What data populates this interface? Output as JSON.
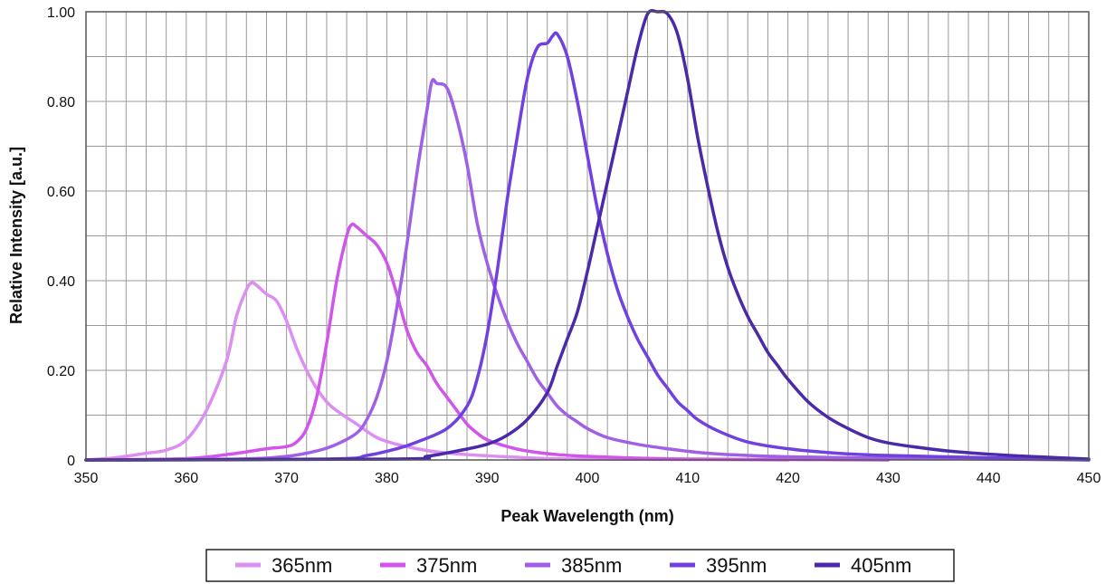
{
  "chart_data": {
    "type": "line",
    "title": "",
    "xlabel": "Peak Wavelength (nm)",
    "ylabel": "Relative Intensity [a.u.]",
    "xlim": [
      350,
      450
    ],
    "ylim": [
      0,
      1.0
    ],
    "grid": true,
    "x_ticks": [
      350,
      360,
      370,
      380,
      390,
      400,
      410,
      420,
      430,
      440,
      450
    ],
    "x_tick_labels": [
      "350",
      "360",
      "370",
      "380",
      "390",
      "400",
      "410",
      "420",
      "430",
      "440",
      "450"
    ],
    "y_ticks": [
      0,
      0.2,
      0.4,
      0.6,
      0.8,
      1.0
    ],
    "y_tick_labels": [
      "0",
      "0.20",
      "0.40",
      "0.60",
      "0.80",
      "1.00"
    ],
    "legend_position": "bottom-center",
    "series": [
      {
        "name": "365nm",
        "color": "#dc8ef2",
        "points": [
          [
            350,
            0
          ],
          [
            353,
            0.005
          ],
          [
            356,
            0.015
          ],
          [
            358,
            0.022
          ],
          [
            360,
            0.045
          ],
          [
            362,
            0.11
          ],
          [
            364,
            0.22
          ],
          [
            365,
            0.32
          ],
          [
            366,
            0.38
          ],
          [
            366.5,
            0.395
          ],
          [
            367,
            0.39
          ],
          [
            368,
            0.37
          ],
          [
            369,
            0.355
          ],
          [
            370,
            0.31
          ],
          [
            371,
            0.25
          ],
          [
            372,
            0.2
          ],
          [
            373,
            0.16
          ],
          [
            374,
            0.13
          ],
          [
            375,
            0.11
          ],
          [
            377,
            0.08
          ],
          [
            379,
            0.05
          ],
          [
            381,
            0.035
          ],
          [
            383,
            0.025
          ],
          [
            385,
            0.018
          ],
          [
            388,
            0.012
          ],
          [
            392,
            0.007
          ],
          [
            396,
            0.003
          ],
          [
            400,
            0.002
          ],
          [
            410,
            0.001
          ],
          [
            420,
            0
          ]
        ]
      },
      {
        "name": "375nm",
        "color": "#d155ea",
        "points": [
          [
            350,
            0
          ],
          [
            360,
            0.003
          ],
          [
            364,
            0.012
          ],
          [
            366,
            0.018
          ],
          [
            368,
            0.025
          ],
          [
            370,
            0.03
          ],
          [
            371,
            0.04
          ],
          [
            372,
            0.07
          ],
          [
            373,
            0.14
          ],
          [
            374,
            0.26
          ],
          [
            375,
            0.4
          ],
          [
            376,
            0.5
          ],
          [
            376.5,
            0.525
          ],
          [
            377,
            0.52
          ],
          [
            378,
            0.5
          ],
          [
            379,
            0.48
          ],
          [
            380,
            0.44
          ],
          [
            381,
            0.37
          ],
          [
            382,
            0.29
          ],
          [
            383,
            0.24
          ],
          [
            384,
            0.21
          ],
          [
            385,
            0.17
          ],
          [
            386,
            0.14
          ],
          [
            387,
            0.11
          ],
          [
            388,
            0.08
          ],
          [
            389,
            0.06
          ],
          [
            390,
            0.045
          ],
          [
            392,
            0.03
          ],
          [
            394,
            0.02
          ],
          [
            397,
            0.012
          ],
          [
            400,
            0.008
          ],
          [
            405,
            0.004
          ],
          [
            410,
            0.002
          ],
          [
            420,
            0.001
          ],
          [
            430,
            0
          ]
        ]
      },
      {
        "name": "385nm",
        "color": "#a060e6",
        "points": [
          [
            350,
            0
          ],
          [
            365,
            0.002
          ],
          [
            370,
            0.008
          ],
          [
            373,
            0.02
          ],
          [
            375,
            0.035
          ],
          [
            377,
            0.06
          ],
          [
            378,
            0.09
          ],
          [
            379,
            0.14
          ],
          [
            380,
            0.22
          ],
          [
            381,
            0.34
          ],
          [
            382,
            0.48
          ],
          [
            383,
            0.64
          ],
          [
            384,
            0.78
          ],
          [
            384.5,
            0.845
          ],
          [
            385,
            0.84
          ],
          [
            386,
            0.83
          ],
          [
            387,
            0.76
          ],
          [
            388,
            0.66
          ],
          [
            389,
            0.53
          ],
          [
            390,
            0.44
          ],
          [
            391,
            0.37
          ],
          [
            392,
            0.31
          ],
          [
            393,
            0.26
          ],
          [
            394,
            0.22
          ],
          [
            395,
            0.18
          ],
          [
            396,
            0.15
          ],
          [
            397,
            0.12
          ],
          [
            398,
            0.1
          ],
          [
            399,
            0.085
          ],
          [
            400,
            0.07
          ],
          [
            402,
            0.05
          ],
          [
            405,
            0.035
          ],
          [
            408,
            0.025
          ],
          [
            411,
            0.017
          ],
          [
            415,
            0.011
          ],
          [
            420,
            0.007
          ],
          [
            430,
            0.004
          ],
          [
            440,
            0.002
          ],
          [
            450,
            0
          ]
        ]
      },
      {
        "name": "395nm",
        "color": "#7040e0",
        "points": [
          [
            350,
            0
          ],
          [
            374,
            0.002
          ],
          [
            378,
            0.01
          ],
          [
            381,
            0.025
          ],
          [
            383,
            0.04
          ],
          [
            386,
            0.07
          ],
          [
            388,
            0.12
          ],
          [
            389,
            0.18
          ],
          [
            390,
            0.28
          ],
          [
            391,
            0.42
          ],
          [
            392,
            0.58
          ],
          [
            393,
            0.72
          ],
          [
            394,
            0.85
          ],
          [
            395,
            0.92
          ],
          [
            396,
            0.93
          ],
          [
            396.5,
            0.945
          ],
          [
            397,
            0.95
          ],
          [
            398,
            0.9
          ],
          [
            399,
            0.8
          ],
          [
            400,
            0.68
          ],
          [
            401,
            0.56
          ],
          [
            402,
            0.46
          ],
          [
            403,
            0.38
          ],
          [
            404,
            0.32
          ],
          [
            405,
            0.27
          ],
          [
            406,
            0.23
          ],
          [
            407,
            0.19
          ],
          [
            408,
            0.16
          ],
          [
            409,
            0.13
          ],
          [
            410,
            0.11
          ],
          [
            411,
            0.09
          ],
          [
            413,
            0.065
          ],
          [
            416,
            0.04
          ],
          [
            420,
            0.025
          ],
          [
            425,
            0.015
          ],
          [
            430,
            0.01
          ],
          [
            440,
            0.005
          ],
          [
            450,
            0
          ]
        ]
      },
      {
        "name": "405nm",
        "color": "#4a2aa8",
        "points": [
          [
            350,
            0
          ],
          [
            381,
            0.002
          ],
          [
            384,
            0.008
          ],
          [
            387,
            0.02
          ],
          [
            390,
            0.035
          ],
          [
            392,
            0.055
          ],
          [
            394,
            0.09
          ],
          [
            396,
            0.15
          ],
          [
            397,
            0.21
          ],
          [
            398,
            0.27
          ],
          [
            399,
            0.33
          ],
          [
            400,
            0.42
          ],
          [
            401,
            0.52
          ],
          [
            402,
            0.62
          ],
          [
            403,
            0.72
          ],
          [
            404,
            0.82
          ],
          [
            405,
            0.92
          ],
          [
            406,
            0.995
          ],
          [
            407,
            1.0
          ],
          [
            408,
            0.995
          ],
          [
            409,
            0.95
          ],
          [
            410,
            0.85
          ],
          [
            411,
            0.72
          ],
          [
            412,
            0.61
          ],
          [
            413,
            0.51
          ],
          [
            414,
            0.43
          ],
          [
            415,
            0.37
          ],
          [
            416,
            0.32
          ],
          [
            417,
            0.28
          ],
          [
            418,
            0.24
          ],
          [
            419,
            0.21
          ],
          [
            420,
            0.18
          ],
          [
            422,
            0.13
          ],
          [
            424,
            0.095
          ],
          [
            426,
            0.07
          ],
          [
            428,
            0.05
          ],
          [
            430,
            0.038
          ],
          [
            433,
            0.028
          ],
          [
            436,
            0.02
          ],
          [
            440,
            0.013
          ],
          [
            445,
            0.007
          ],
          [
            450,
            0.002
          ]
        ]
      }
    ]
  }
}
